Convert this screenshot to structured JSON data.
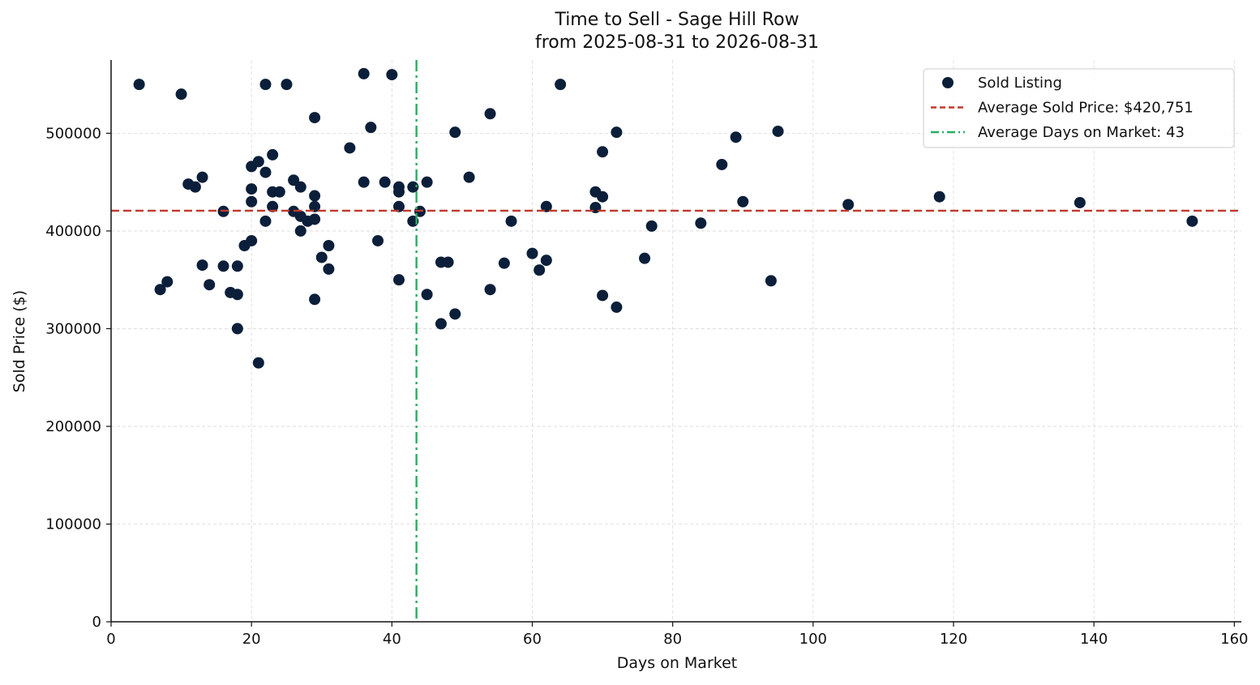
{
  "chart_data": {
    "type": "scatter",
    "title": "Time to Sell - Sage Hill Row",
    "subtitle": "from 2025-08-31 to 2026-08-31",
    "xlabel": "Days on Market",
    "ylabel": "Sold Price ($)",
    "xlim": [
      0,
      161
    ],
    "ylim": [
      0,
      575000
    ],
    "xticks": [
      0,
      20,
      40,
      60,
      80,
      100,
      120,
      140,
      160
    ],
    "yticks": [
      0,
      100000,
      200000,
      300000,
      400000,
      500000
    ],
    "grid": true,
    "legend_position": "top-right",
    "series": [
      {
        "name": "Sold Listing",
        "color": "#0b1f3a",
        "points": [
          [
            4,
            550000
          ],
          [
            7,
            340000
          ],
          [
            8,
            348000
          ],
          [
            10,
            540000
          ],
          [
            11,
            448000
          ],
          [
            12,
            445000
          ],
          [
            13,
            455000
          ],
          [
            13,
            365000
          ],
          [
            14,
            345000
          ],
          [
            16,
            420000
          ],
          [
            16,
            364000
          ],
          [
            17,
            337000
          ],
          [
            18,
            364000
          ],
          [
            18,
            335000
          ],
          [
            18,
            300000
          ],
          [
            19,
            385000
          ],
          [
            20,
            466000
          ],
          [
            20,
            443000
          ],
          [
            20,
            430000
          ],
          [
            20,
            390000
          ],
          [
            21,
            471000
          ],
          [
            21,
            265000
          ],
          [
            22,
            550000
          ],
          [
            22,
            460000
          ],
          [
            22,
            410000
          ],
          [
            23,
            478000
          ],
          [
            23,
            440000
          ],
          [
            23,
            425000
          ],
          [
            24,
            440000
          ],
          [
            25,
            550000
          ],
          [
            26,
            452000
          ],
          [
            26,
            420000
          ],
          [
            27,
            445000
          ],
          [
            27,
            415000
          ],
          [
            27,
            400000
          ],
          [
            28,
            410000
          ],
          [
            29,
            516000
          ],
          [
            29,
            436000
          ],
          [
            29,
            425000
          ],
          [
            29,
            412000
          ],
          [
            29,
            330000
          ],
          [
            30,
            373000
          ],
          [
            31,
            385000
          ],
          [
            31,
            361000
          ],
          [
            34,
            485000
          ],
          [
            36,
            561000
          ],
          [
            36,
            450000
          ],
          [
            37,
            506000
          ],
          [
            38,
            390000
          ],
          [
            39,
            450000
          ],
          [
            40,
            560000
          ],
          [
            41,
            445000
          ],
          [
            41,
            440000
          ],
          [
            41,
            425000
          ],
          [
            41,
            350000
          ],
          [
            43,
            445000
          ],
          [
            43,
            410000
          ],
          [
            44,
            420000
          ],
          [
            45,
            450000
          ],
          [
            45,
            335000
          ],
          [
            47,
            368000
          ],
          [
            47,
            305000
          ],
          [
            48,
            368000
          ],
          [
            49,
            501000
          ],
          [
            49,
            315000
          ],
          [
            51,
            455000
          ],
          [
            54,
            520000
          ],
          [
            54,
            340000
          ],
          [
            56,
            367000
          ],
          [
            57,
            410000
          ],
          [
            60,
            377000
          ],
          [
            61,
            360000
          ],
          [
            62,
            425000
          ],
          [
            62,
            370000
          ],
          [
            64,
            550000
          ],
          [
            69,
            440000
          ],
          [
            69,
            424000
          ],
          [
            70,
            481000
          ],
          [
            70,
            435000
          ],
          [
            70,
            334000
          ],
          [
            72,
            501000
          ],
          [
            72,
            322000
          ],
          [
            76,
            372000
          ],
          [
            77,
            405000
          ],
          [
            84,
            408000
          ],
          [
            87,
            468000
          ],
          [
            89,
            496000
          ],
          [
            90,
            430000
          ],
          [
            94,
            349000
          ],
          [
            95,
            502000
          ],
          [
            105,
            427000
          ],
          [
            118,
            435000
          ],
          [
            138,
            429000
          ],
          [
            154,
            410000
          ]
        ]
      }
    ],
    "reference_lines": [
      {
        "orientation": "horizontal",
        "value": 420751,
        "label": "Average Sold Price: $420,751",
        "color": "#c0392b",
        "style": "dashed"
      },
      {
        "orientation": "vertical",
        "value": 43.5,
        "label": "Average Days on Market: 43",
        "color": "#27ae60",
        "style": "dashdot"
      }
    ]
  }
}
